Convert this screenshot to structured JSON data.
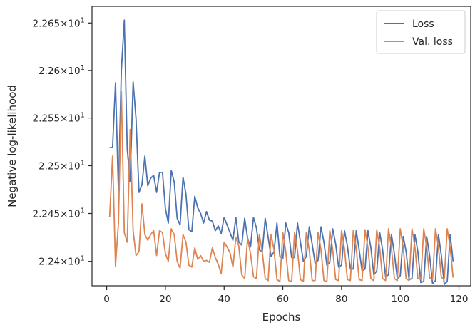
{
  "chart_data": {
    "type": "line",
    "xlabel": "Epochs",
    "ylabel": "Negative log-likelihood",
    "xlim": [
      -5,
      124
    ],
    "ylim": [
      22.3745,
      22.6675
    ],
    "x_ticks": [
      0,
      20,
      40,
      60,
      80,
      100,
      120
    ],
    "y_ticks": [
      {
        "value": 22.4,
        "mantissa": "2.24",
        "base": "10",
        "exp": "1"
      },
      {
        "value": 22.45,
        "mantissa": "2.245",
        "base": "10",
        "exp": "1"
      },
      {
        "value": 22.5,
        "mantissa": "2.25",
        "base": "10",
        "exp": "1"
      },
      {
        "value": 22.55,
        "mantissa": "2.255",
        "base": "10",
        "exp": "1"
      },
      {
        "value": 22.6,
        "mantissa": "2.26",
        "base": "10",
        "exp": "1"
      },
      {
        "value": 22.65,
        "mantissa": "2.265",
        "base": "10",
        "exp": "1"
      }
    ],
    "y_scale": "log",
    "grid": false,
    "legend_position": "top-right",
    "series": [
      {
        "name": "Loss",
        "color": "#4c72b0",
        "values": [
          22.519,
          22.519,
          22.587,
          22.474,
          22.6,
          22.653,
          22.517,
          22.483,
          22.588,
          22.549,
          22.472,
          22.48,
          22.51,
          22.479,
          22.487,
          22.49,
          22.472,
          22.493,
          22.493,
          22.455,
          22.44,
          22.495,
          22.483,
          22.445,
          22.438,
          22.488,
          22.47,
          22.433,
          22.431,
          22.468,
          22.456,
          22.45,
          22.44,
          22.452,
          22.443,
          22.442,
          22.432,
          22.437,
          22.429,
          22.446,
          22.438,
          22.43,
          22.422,
          22.446,
          22.42,
          22.417,
          22.445,
          22.424,
          22.415,
          22.446,
          22.435,
          22.412,
          22.41,
          22.445,
          22.425,
          22.405,
          22.41,
          22.44,
          22.405,
          22.403,
          22.44,
          22.43,
          22.404,
          22.404,
          22.44,
          22.42,
          22.4,
          22.405,
          22.436,
          22.418,
          22.398,
          22.401,
          22.436,
          22.42,
          22.396,
          22.399,
          22.434,
          22.418,
          22.394,
          22.396,
          22.432,
          22.416,
          22.392,
          22.392,
          22.432,
          22.412,
          22.39,
          22.392,
          22.432,
          22.414,
          22.386,
          22.39,
          22.43,
          22.412,
          22.384,
          22.386,
          22.428,
          22.408,
          22.382,
          22.385,
          22.426,
          22.41,
          22.381,
          22.382,
          22.428,
          22.41,
          22.378,
          22.379,
          22.426,
          22.406,
          22.377,
          22.38,
          22.428,
          22.406,
          22.376,
          22.379,
          22.428,
          22.4
        ]
      },
      {
        "name": "Val. loss",
        "color": "#dd8452",
        "values": [
          22.446,
          22.51,
          22.395,
          22.44,
          22.578,
          22.43,
          22.42,
          22.538,
          22.432,
          22.406,
          22.41,
          22.46,
          22.428,
          22.422,
          22.428,
          22.432,
          22.406,
          22.432,
          22.43,
          22.408,
          22.4,
          22.434,
          22.428,
          22.4,
          22.393,
          22.428,
          22.42,
          22.396,
          22.394,
          22.414,
          22.402,
          22.406,
          22.4,
          22.401,
          22.399,
          22.414,
          22.404,
          22.397,
          22.387,
          22.42,
          22.415,
          22.409,
          22.394,
          22.425,
          22.416,
          22.386,
          22.382,
          22.424,
          22.408,
          22.384,
          22.382,
          22.428,
          22.41,
          22.382,
          22.38,
          22.428,
          22.412,
          22.381,
          22.379,
          22.43,
          22.41,
          22.38,
          22.379,
          22.43,
          22.411,
          22.381,
          22.379,
          22.43,
          22.412,
          22.38,
          22.38,
          22.43,
          22.412,
          22.38,
          22.379,
          22.432,
          22.412,
          22.381,
          22.38,
          22.432,
          22.413,
          22.381,
          22.38,
          22.432,
          22.414,
          22.381,
          22.38,
          22.433,
          22.414,
          22.382,
          22.38,
          22.433,
          22.414,
          22.382,
          22.38,
          22.434,
          22.414,
          22.382,
          22.38,
          22.434,
          22.415,
          22.382,
          22.38,
          22.434,
          22.415,
          22.382,
          22.381,
          22.434,
          22.415,
          22.383,
          22.381,
          22.434,
          22.415,
          22.383,
          22.382,
          22.434,
          22.415,
          22.383
        ]
      }
    ]
  }
}
